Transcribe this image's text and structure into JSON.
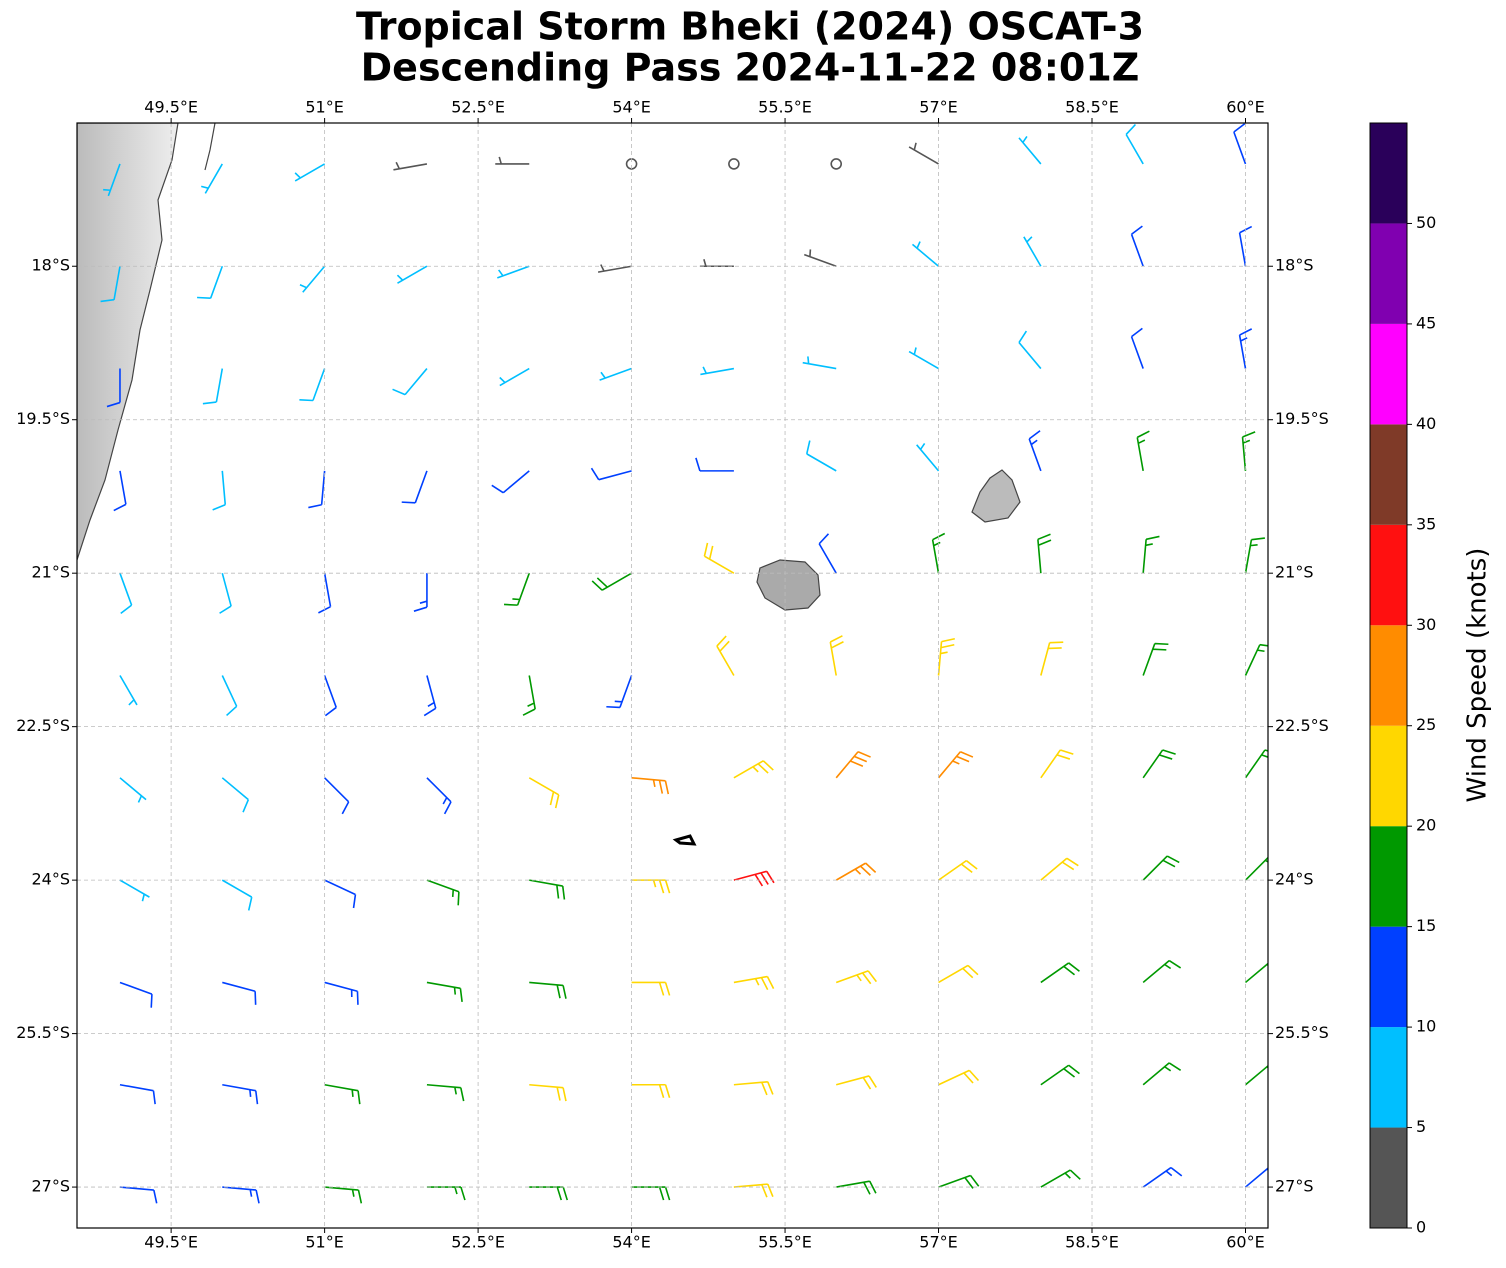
{
  "chart_data": {
    "type": "barbs",
    "title": "Tropical Storm Bheki (2024) OSCAT-3",
    "subtitle": "Descending Pass 2024-11-22 08:01Z",
    "xlim": [
      48.58,
      60.22
    ],
    "ylim": [
      -27.4,
      -16.6
    ],
    "xticks": [
      {
        "value": 49.5,
        "label": "49.5°E"
      },
      {
        "value": 51,
        "label": "51°E"
      },
      {
        "value": 52.5,
        "label": "52.5°E"
      },
      {
        "value": 54,
        "label": "54°E"
      },
      {
        "value": 55.5,
        "label": "55.5°E"
      },
      {
        "value": 57,
        "label": "57°E"
      },
      {
        "value": 58.5,
        "label": "58.5°E"
      },
      {
        "value": 60,
        "label": "60°E"
      }
    ],
    "yticks": [
      {
        "value": -18,
        "label": "18°S"
      },
      {
        "value": -19.5,
        "label": "19.5°S"
      },
      {
        "value": -21,
        "label": "21°S"
      },
      {
        "value": -22.5,
        "label": "22.5°S"
      },
      {
        "value": -24,
        "label": "24°S"
      },
      {
        "value": -25.5,
        "label": "25.5°S"
      },
      {
        "value": -27,
        "label": "27°S"
      }
    ],
    "grid": true,
    "barbs": {
      "lon": [
        49,
        50,
        51,
        52,
        53,
        54,
        55,
        56,
        57,
        58,
        59,
        60
      ],
      "lat": [
        -17,
        -18,
        -19,
        -20,
        -21,
        -22,
        -23,
        -24,
        -25,
        -26,
        -27
      ],
      "speed": [
        [
          6,
          6,
          5,
          4,
          3,
          2,
          2,
          2,
          3,
          5,
          8,
          10
        ],
        [
          8,
          8,
          7,
          6,
          5,
          4,
          4,
          3,
          5,
          7,
          10,
          12
        ],
        [
          11,
          9,
          8,
          8,
          7,
          7,
          7,
          7,
          7,
          9,
          12,
          13
        ],
        [
          10,
          9,
          11,
          12,
          12,
          12,
          11,
          9,
          7,
          14,
          15,
          15
        ],
        [
          8,
          9,
          12,
          13,
          16,
          18,
          20,
          12,
          16,
          18,
          17,
          16
        ],
        [
          7,
          8,
          11,
          13,
          17,
          14,
          22,
          20,
          24,
          22,
          18,
          16
        ],
        [
          7,
          8,
          12,
          14,
          20,
          27,
          24,
          28,
          26,
          22,
          19,
          17
        ],
        [
          7,
          9,
          12,
          15,
          18,
          24,
          30,
          27,
          22,
          20,
          18,
          16
        ],
        [
          10,
          12,
          14,
          16,
          19,
          22,
          24,
          23,
          22,
          19,
          17,
          15
        ],
        [
          12,
          13,
          15,
          17,
          20,
          21,
          22,
          22,
          21,
          18,
          16,
          15
        ],
        [
          12,
          14,
          16,
          17,
          18,
          19,
          20,
          19,
          18,
          16,
          14,
          13
        ]
      ],
      "direction": [
        [
          200,
          210,
          240,
          260,
          270,
          280,
          280,
          300,
          300,
          320,
          330,
          340
        ],
        [
          190,
          200,
          220,
          240,
          250,
          260,
          270,
          290,
          310,
          330,
          340,
          350
        ],
        [
          180,
          190,
          200,
          220,
          240,
          250,
          260,
          280,
          300,
          320,
          340,
          350
        ],
        [
          170,
          175,
          185,
          200,
          230,
          255,
          270,
          300,
          320,
          340,
          350,
          355
        ],
        [
          160,
          165,
          170,
          180,
          200,
          240,
          300,
          330,
          350,
          355,
          5,
          10
        ],
        [
          150,
          155,
          160,
          165,
          170,
          200,
          330,
          350,
          5,
          15,
          20,
          25
        ],
        [
          130,
          130,
          135,
          135,
          120,
          95,
          60,
          40,
          40,
          35,
          35,
          35
        ],
        [
          120,
          120,
          115,
          110,
          100,
          90,
          75,
          60,
          55,
          50,
          45,
          45
        ],
        [
          110,
          105,
          105,
          100,
          95,
          90,
          80,
          70,
          60,
          55,
          50,
          50
        ],
        [
          100,
          100,
          100,
          95,
          95,
          90,
          85,
          75,
          65,
          55,
          50,
          50
        ],
        [
          95,
          95,
          95,
          90,
          90,
          90,
          85,
          80,
          70,
          60,
          55,
          50
        ]
      ]
    },
    "colorbar": {
      "label": "Wind Speed (knots)",
      "bounds": [
        0,
        5,
        10,
        15,
        20,
        25,
        30,
        35,
        40,
        45,
        50,
        55
      ],
      "colors": [
        "#555555",
        "#00bfff",
        "#0040ff",
        "#009900",
        "#ffd700",
        "#ff8c00",
        "#ff1010",
        "#7f3a28",
        "#ff00ff",
        "#8000b0",
        "#2a005a"
      ],
      "ticks": [
        0,
        5,
        10,
        15,
        20,
        25,
        30,
        35,
        40,
        45,
        50
      ]
    }
  }
}
